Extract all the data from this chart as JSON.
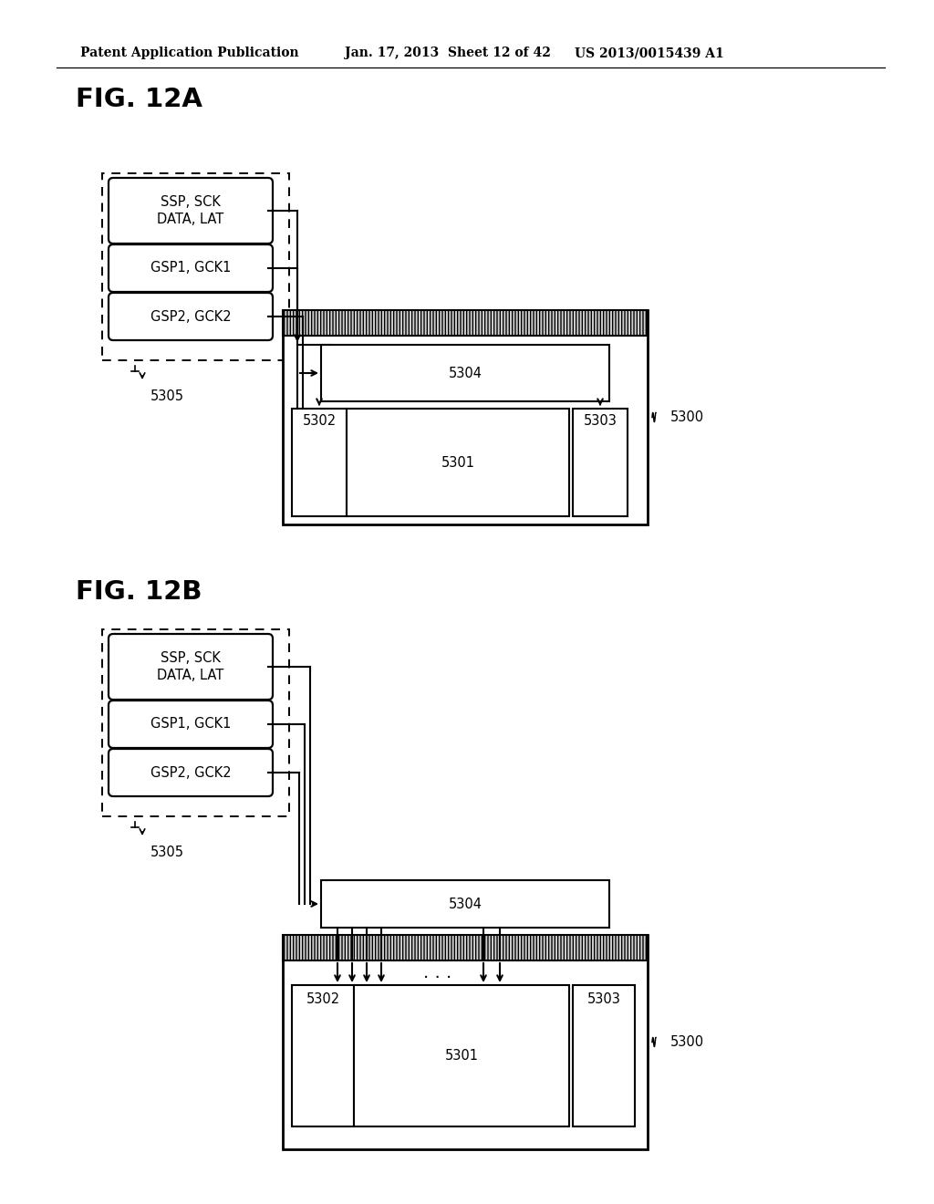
{
  "bg_color": "#ffffff",
  "header_text": "Patent Application Publication",
  "header_date": "Jan. 17, 2013  Sheet 12 of 42",
  "header_patent": "US 2013/0015439 A1",
  "fig_12a_label": "FIG. 12A",
  "fig_12b_label": "FIG. 12B",
  "label_5300": "5300",
  "label_5301": "5301",
  "label_5302": "5302",
  "label_5303": "5303",
  "label_5304": "5304",
  "label_5305": "5305",
  "box1_label": "SSP, SCK\nDATA, LAT",
  "box2_label": "GSP1, GCK1",
  "box3_label": "GSP2, GCK2"
}
